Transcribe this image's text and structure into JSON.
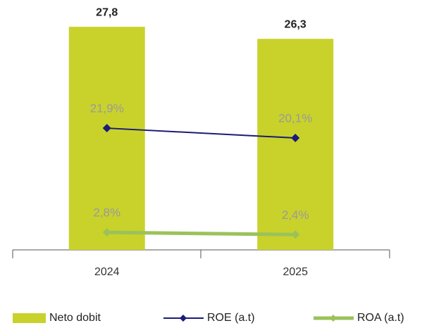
{
  "chart_data": {
    "type": "bar",
    "categories": [
      "2024",
      "2025"
    ],
    "series": [
      {
        "name": "Neto dobit",
        "color": "#c9d22b",
        "values": [
          27.8,
          26.3
        ],
        "value_labels": [
          "27,8",
          "26,3"
        ]
      },
      {
        "name": "ROE (a.t)",
        "type": "line",
        "axis": "y2",
        "color": "#1b1b78",
        "values": [
          21.9,
          20.1
        ],
        "value_labels": [
          "21,9%",
          "20,1%"
        ]
      },
      {
        "name": "ROA (a.t)",
        "type": "line",
        "axis": "y2",
        "color": "#9bc25a",
        "values": [
          2.8,
          2.4
        ],
        "value_labels": [
          "2,8%",
          "2,4%"
        ]
      }
    ],
    "ylim": [
      0,
      30
    ],
    "y2lim": [
      -0.4,
      43.7
    ],
    "legend": "bottom"
  }
}
